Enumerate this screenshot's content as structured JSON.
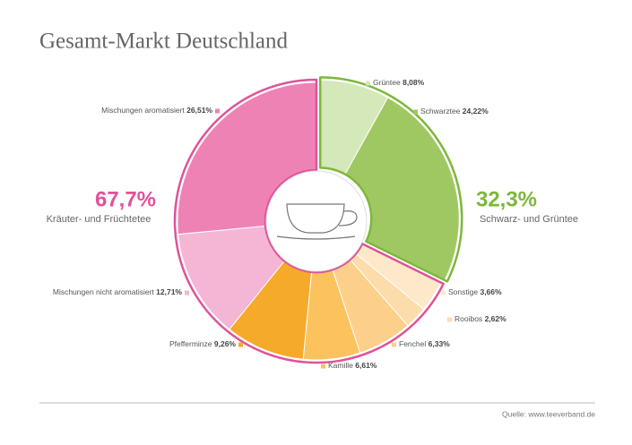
{
  "chart_data": {
    "type": "pie",
    "title": "Gesamt-Markt Deutschland",
    "source": "Quelle: www.teeverband.de",
    "groups": [
      {
        "name": "Schwarz- und Grüntee",
        "value": 32.3,
        "value_label": "32,3%",
        "color": "#7cb83a",
        "categories": [
          "Grüntee",
          "Schwarztee"
        ],
        "values": [
          8.08,
          24.22
        ],
        "value_labels": [
          "8,08%",
          "24,22%"
        ],
        "colors": [
          "#d5e8b9",
          "#a0c862"
        ]
      },
      {
        "name": "Kräuter- und Früchtetee",
        "value": 67.7,
        "value_label": "67,7%",
        "color": "#e0529a",
        "categories": [
          "Sonstige",
          "Rooibos",
          "Fenchel",
          "Kamille",
          "Pfefferminze",
          "Mischungen nicht aromatisiert",
          "Mischungen aromatisiert"
        ],
        "values": [
          3.66,
          2.62,
          6.33,
          6.61,
          9.26,
          12.71,
          26.51
        ],
        "value_labels": [
          "3,66%",
          "2,62%",
          "6,33%",
          "6,61%",
          "9,26%",
          "12,71%",
          "26,51%"
        ],
        "colors": [
          "#fde9c9",
          "#fddcab",
          "#fcd08b",
          "#fbc25e",
          "#f6aa2a",
          "#f5b5d4",
          "#ef82b5"
        ]
      }
    ]
  }
}
